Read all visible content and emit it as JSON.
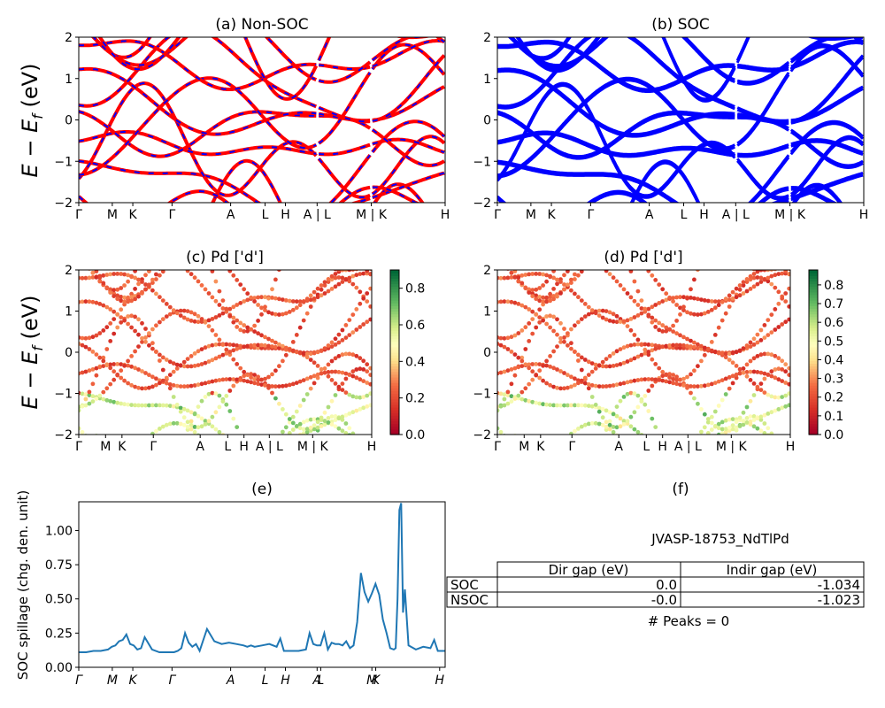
{
  "panels": {
    "a_title": "(a) Non-SOC",
    "b_title": "(b) SOC",
    "c_title": "(c)  Pd ['d']",
    "d_title": "(d) Pd ['d']",
    "e_title": "(e)",
    "f_title": "(f)",
    "band_ylabel": "E − E_f (eV)",
    "spill_ylabel": "SOC spillage (chg. den. unit)"
  },
  "kpath_labels": [
    "Γ",
    "M",
    "K",
    "Γ",
    "A",
    "L",
    "H",
    "A | L",
    "M | K",
    "H"
  ],
  "kpath_labels_e": [
    "Γ",
    "M",
    "K",
    "Γ",
    "A",
    "L",
    "H",
    "A",
    "L",
    "M",
    "K",
    "H"
  ],
  "band_yticks": [
    "−2",
    "−1",
    "0",
    "1",
    "2"
  ],
  "colorbar_c_ticks": [
    "0.0",
    "0.2",
    "0.4",
    "0.6",
    "0.8"
  ],
  "colorbar_d_ticks": [
    "0.0",
    "0.1",
    "0.2",
    "0.3",
    "0.4",
    "0.5",
    "0.6",
    "0.7",
    "0.8"
  ],
  "spill_yticks": [
    "0.00",
    "0.25",
    "0.50",
    "0.75",
    "1.00"
  ],
  "info": {
    "material": "JVASP-18753_NdTlPd",
    "table_headers": [
      "",
      "Dir gap (eV)",
      "Indir gap (eV)"
    ],
    "rows": [
      {
        "label": "SOC",
        "dir": "0.0",
        "indir": "-1.034"
      },
      {
        "label": "NSOC",
        "dir": "-0.0",
        "indir": "-1.023"
      }
    ],
    "peaks": "# Peaks = 0"
  },
  "colors": {
    "nonsoc_up": "#ff0000",
    "nonsoc_dn": "#0000ff",
    "soc": "#0000ff",
    "spillage_line": "#1f77b4",
    "cmap": "RdYlGn"
  },
  "chart_data": [
    {
      "type": "line",
      "title": "(e)",
      "ylabel": "SOC spillage (chg. den. unit)",
      "ylim": [
        0,
        1.21
      ],
      "x": [
        0.0,
        0.02,
        0.04,
        0.06,
        0.08,
        0.09,
        0.1,
        0.11,
        0.12,
        0.13,
        0.14,
        0.15,
        0.16,
        0.17,
        0.18,
        0.2,
        0.22,
        0.24,
        0.26,
        0.27,
        0.28,
        0.29,
        0.3,
        0.31,
        0.32,
        0.33,
        0.35,
        0.37,
        0.39,
        0.41,
        0.43,
        0.45,
        0.46,
        0.47,
        0.48,
        0.5,
        0.52,
        0.54,
        0.55,
        0.56,
        0.57,
        0.58,
        0.6,
        0.62,
        0.63,
        0.64,
        0.65,
        0.66,
        0.67,
        0.68,
        0.69,
        0.7,
        0.71,
        0.72,
        0.73,
        0.74,
        0.75,
        0.76,
        0.77,
        0.78,
        0.79,
        0.8,
        0.81,
        0.82,
        0.83,
        0.84,
        0.85,
        0.86,
        0.865,
        0.87,
        0.875,
        0.88,
        0.885,
        0.89,
        0.9,
        0.92,
        0.94,
        0.96,
        0.97,
        0.98,
        1.0
      ],
      "y": [
        0.11,
        0.11,
        0.12,
        0.12,
        0.13,
        0.15,
        0.16,
        0.19,
        0.2,
        0.24,
        0.17,
        0.16,
        0.13,
        0.14,
        0.22,
        0.13,
        0.11,
        0.11,
        0.11,
        0.12,
        0.14,
        0.25,
        0.18,
        0.15,
        0.17,
        0.12,
        0.28,
        0.19,
        0.17,
        0.18,
        0.17,
        0.16,
        0.15,
        0.16,
        0.15,
        0.16,
        0.17,
        0.15,
        0.21,
        0.12,
        0.12,
        0.12,
        0.12,
        0.13,
        0.25,
        0.17,
        0.16,
        0.16,
        0.25,
        0.13,
        0.18,
        0.17,
        0.17,
        0.16,
        0.19,
        0.14,
        0.16,
        0.33,
        0.69,
        0.55,
        0.48,
        0.54,
        0.61,
        0.53,
        0.35,
        0.25,
        0.14,
        0.13,
        0.14,
        0.5,
        1.15,
        1.2,
        0.4,
        0.57,
        0.16,
        0.13,
        0.15,
        0.14,
        0.2,
        0.12,
        0.12
      ]
    }
  ]
}
